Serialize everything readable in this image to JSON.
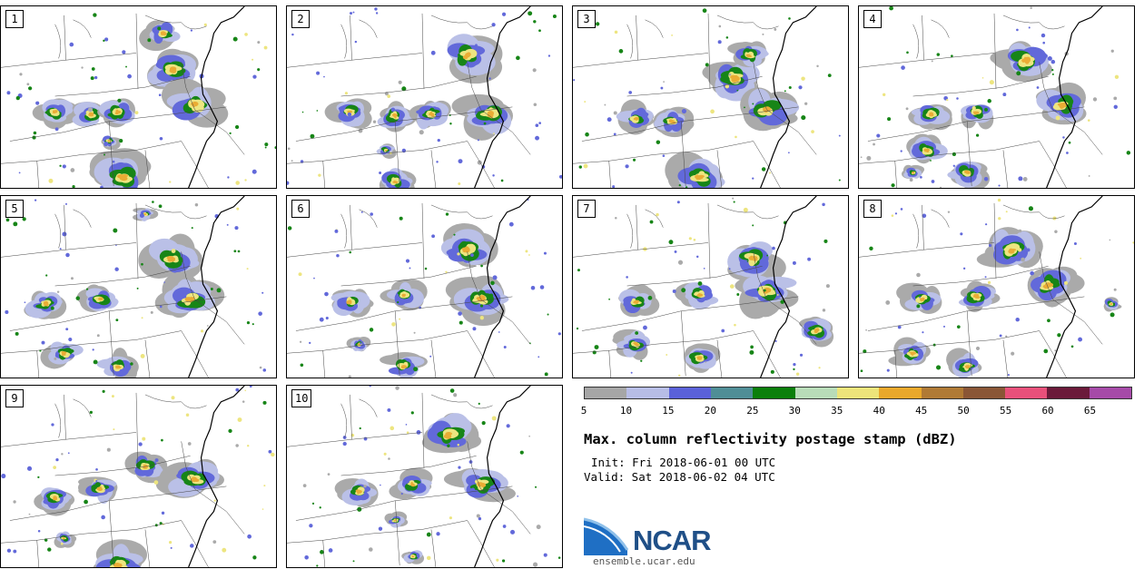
{
  "figure": {
    "title": "Max. column reflectivity postage stamp (dBZ)",
    "init": "Init: Fri 2018-06-01 00 UTC",
    "valid": "Valid: Sat 2018-06-02 04 UTC",
    "logo_text": "NCAR",
    "url": "ensemble.ucar.edu"
  },
  "panels": [
    {
      "label": "1"
    },
    {
      "label": "2"
    },
    {
      "label": "3"
    },
    {
      "label": "4"
    },
    {
      "label": "5"
    },
    {
      "label": "6"
    },
    {
      "label": "7"
    },
    {
      "label": "8"
    },
    {
      "label": "9"
    },
    {
      "label": "10"
    }
  ],
  "colorbar": {
    "ticks": [
      "5",
      "10",
      "15",
      "20",
      "25",
      "30",
      "35",
      "40",
      "45",
      "50",
      "55",
      "60",
      "65"
    ],
    "colors": [
      "#a6a6a6",
      "#b7bde6",
      "#5a61d9",
      "#4f8e96",
      "#0b7f0b",
      "#b8dcb8",
      "#ede47a",
      "#e9a82b",
      "#b07a35",
      "#8a5636",
      "#e8507a",
      "#6b1a3a",
      "#a64aa8"
    ]
  }
}
